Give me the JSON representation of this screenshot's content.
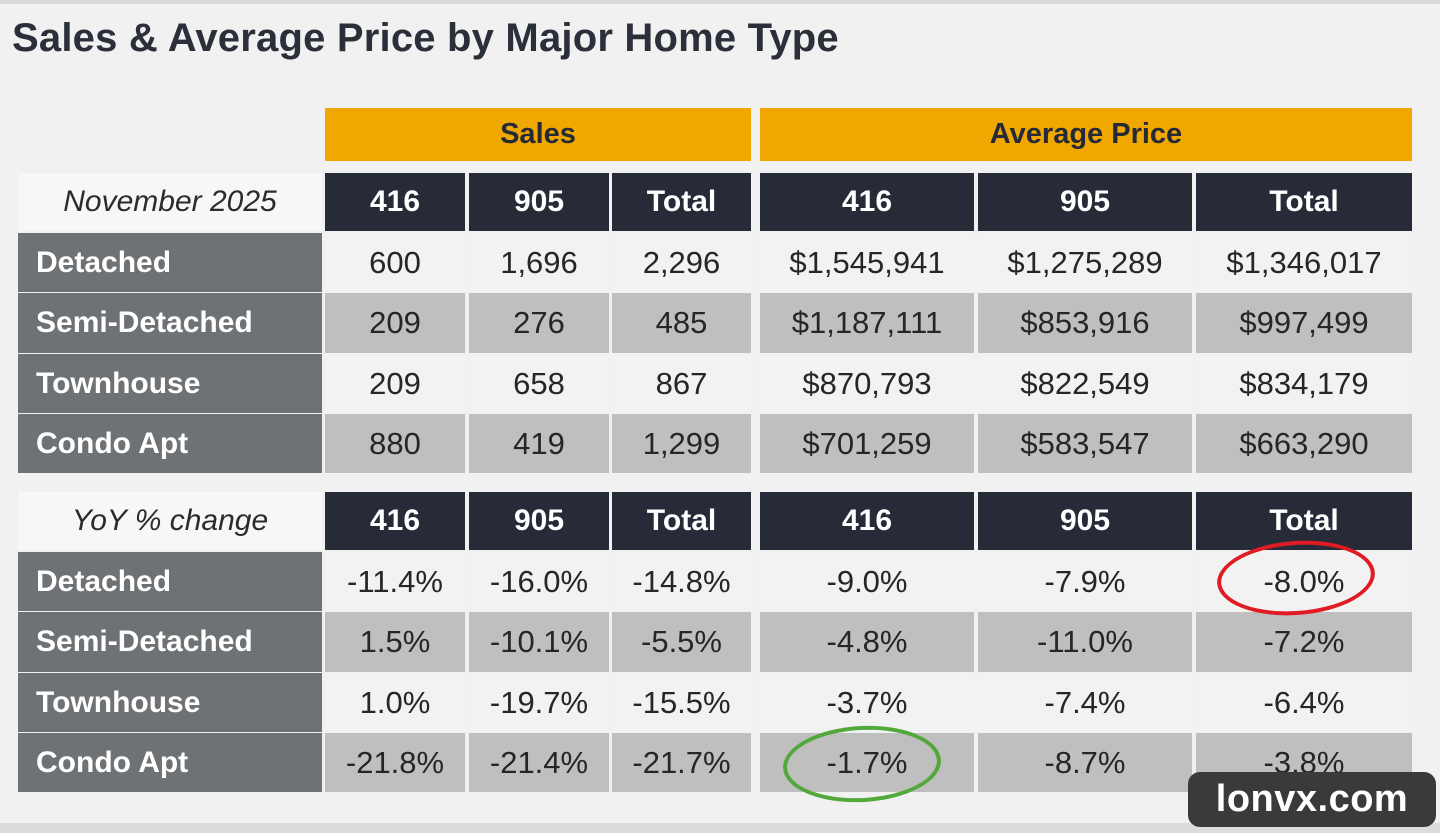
{
  "title": "Sales & Average Price by Major Home Type",
  "group_headers": {
    "sales": "Sales",
    "avg_price": "Average Price"
  },
  "section1": {
    "period_label": "November 2025",
    "columns": [
      "416",
      "905",
      "Total",
      "416",
      "905",
      "Total"
    ],
    "rows": [
      {
        "label": "Detached",
        "values": [
          "600",
          "1,696",
          "2,296",
          "$1,545,941",
          "$1,275,289",
          "$1,346,017"
        ]
      },
      {
        "label": "Semi-Detached",
        "values": [
          "209",
          "276",
          "485",
          "$1,187,111",
          "$853,916",
          "$997,499"
        ]
      },
      {
        "label": "Townhouse",
        "values": [
          "209",
          "658",
          "867",
          "$870,793",
          "$822,549",
          "$834,179"
        ]
      },
      {
        "label": "Condo Apt",
        "values": [
          "880",
          "419",
          "1,299",
          "$701,259",
          "$583,547",
          "$663,290"
        ]
      }
    ]
  },
  "section2": {
    "period_label": "YoY % change",
    "columns": [
      "416",
      "905",
      "Total",
      "416",
      "905",
      "Total"
    ],
    "rows": [
      {
        "label": "Detached",
        "values": [
          "-11.4%",
          "-16.0%",
          "-14.8%",
          "-9.0%",
          "-7.9%",
          "-8.0%"
        ]
      },
      {
        "label": "Semi-Detached",
        "values": [
          "1.5%",
          "-10.1%",
          "-5.5%",
          "-4.8%",
          "-11.0%",
          "-7.2%"
        ]
      },
      {
        "label": "Townhouse",
        "values": [
          "1.0%",
          "-19.7%",
          "-15.5%",
          "-3.7%",
          "-7.4%",
          "-6.4%"
        ]
      },
      {
        "label": "Condo Apt",
        "values": [
          "-21.8%",
          "-21.4%",
          "-21.7%",
          "-1.7%",
          "-8.7%",
          "-3.8%"
        ]
      }
    ]
  },
  "annotations": {
    "red_circle_cell": "section2 Detached Average Price Total",
    "green_circle_cell": "section2 Condo Apt Average Price 416"
  },
  "watermark": "lonvx.com",
  "colors": {
    "accent": "#f0a800",
    "header_dark": "#272b38",
    "row_label_gray": "#6f7275",
    "row_alt": "#bfbfbf",
    "red_circle": "#e01b24",
    "green_circle": "#52a83a"
  }
}
